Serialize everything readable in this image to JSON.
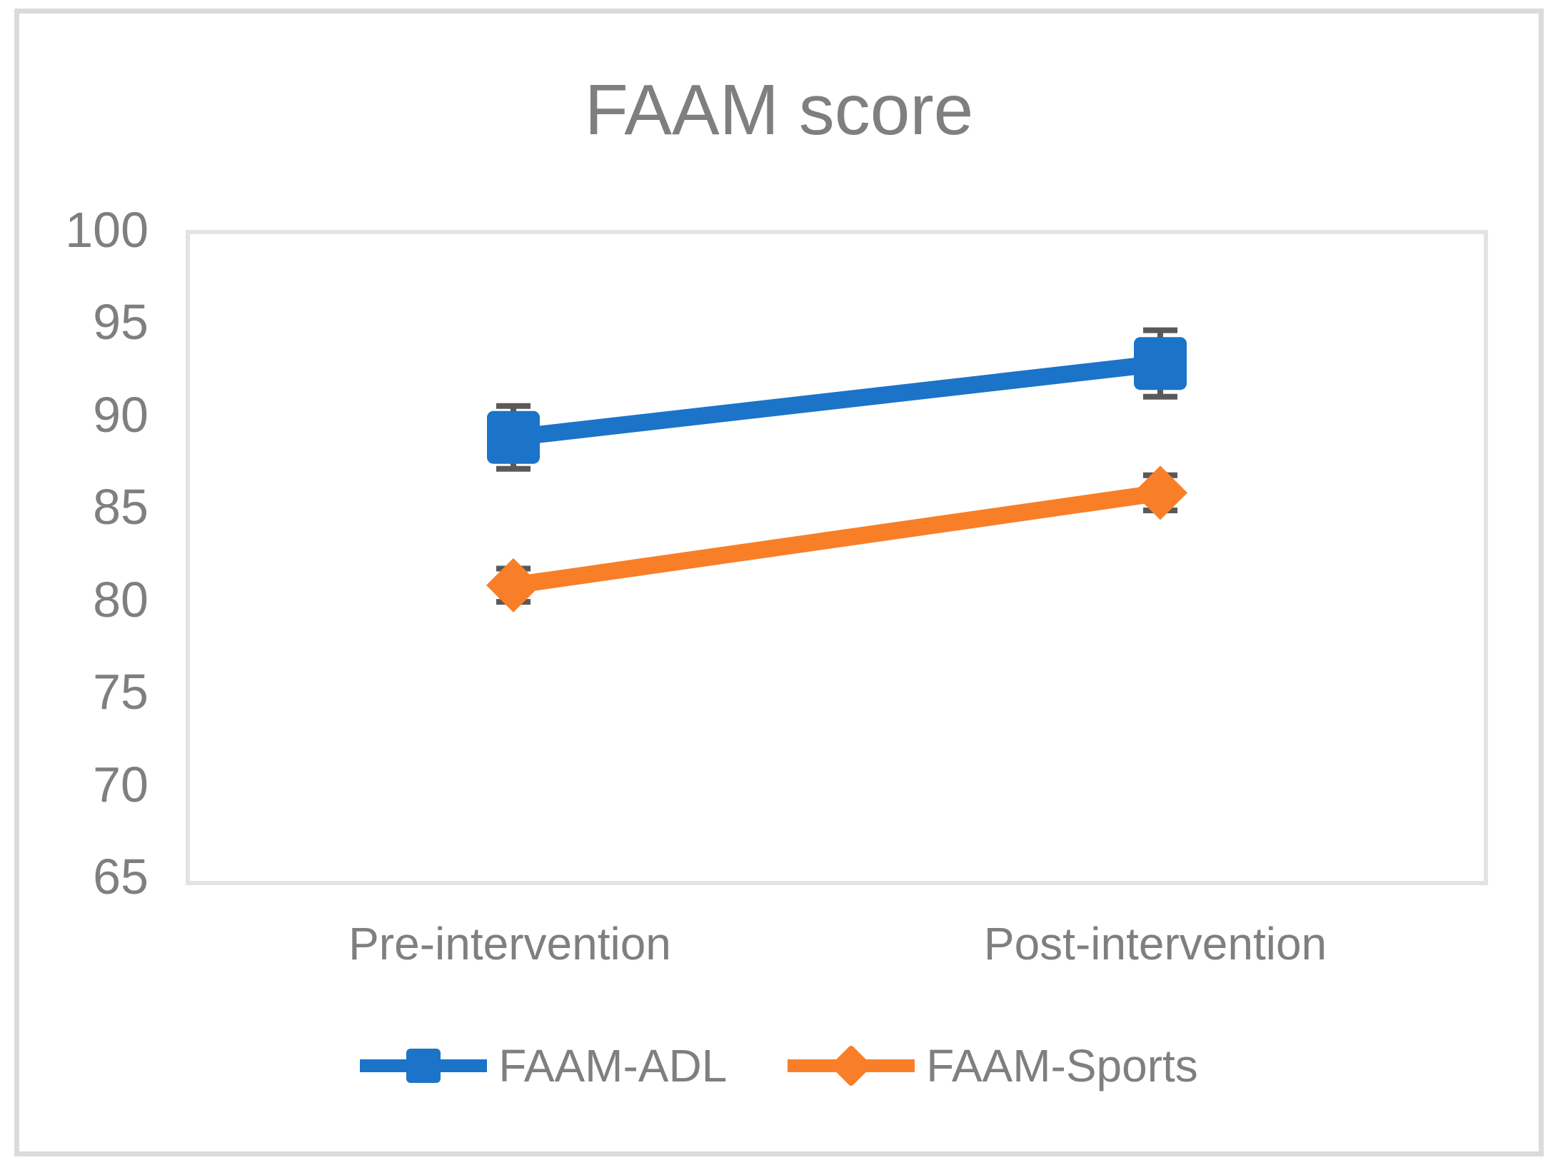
{
  "title": "FAAM score",
  "colors": {
    "axis_text": "#7F7F7F",
    "title_text": "#7F7F7F",
    "frame_border": "#DBDBDB",
    "plot_border": "#E3E3E3",
    "error_bar": "#595959",
    "adl_blue": "#1B74C8",
    "sports_orange": "#F87F28",
    "background": "#FFFFFF"
  },
  "chart_data": {
    "type": "line",
    "title": "FAAM score",
    "categories": [
      "Pre-intervention",
      "Post-intervention"
    ],
    "series": [
      {
        "name": "FAAM-ADL",
        "values": [
          89,
          93
        ],
        "errors": [
          1.7,
          1.8
        ],
        "color": "#1B74C8",
        "marker": "square"
      },
      {
        "name": "FAAM-Sports",
        "values": [
          81,
          86
        ],
        "errors": [
          0.9,
          0.95
        ],
        "color": "#F87F28",
        "marker": "diamond"
      }
    ],
    "xlabel": "",
    "ylabel": "",
    "ylim": [
      65,
      100
    ],
    "yticks": [
      100,
      95,
      90,
      85,
      80,
      75,
      70,
      65
    ],
    "grid": false,
    "legend_position": "bottom",
    "error_bars": true
  },
  "legend": {
    "items": [
      {
        "label": "FAAM-ADL"
      },
      {
        "label": "FAAM-Sports"
      }
    ]
  }
}
